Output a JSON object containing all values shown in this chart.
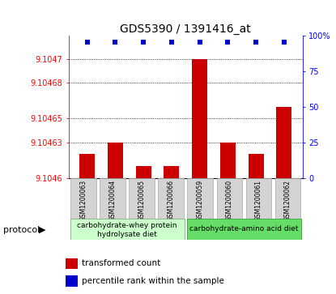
{
  "title": "GDS5390 / 1391416_at",
  "samples": [
    "GSM1200063",
    "GSM1200064",
    "GSM1200065",
    "GSM1200066",
    "GSM1200059",
    "GSM1200060",
    "GSM1200061",
    "GSM1200062"
  ],
  "transformed_counts": [
    9.10462,
    9.10463,
    9.10461,
    9.10461,
    9.1047,
    9.10463,
    9.10462,
    9.10466
  ],
  "ylim_left": [
    9.1046,
    9.10472
  ],
  "ylim_right": [
    0,
    100
  ],
  "yticks_left": [
    9.1046,
    9.10463,
    9.10465,
    9.10468,
    9.1047
  ],
  "ytick_labels_left": [
    "9.1046",
    "9.10463",
    "9.10465",
    "9.10468",
    "9.1047"
  ],
  "yticks_right": [
    0,
    25,
    50,
    75,
    100
  ],
  "ytick_labels_right": [
    "0",
    "25",
    "50",
    "75",
    "100%"
  ],
  "bar_color": "#cc0000",
  "dot_color": "#0000cc",
  "group1_label_line1": "carbohydrate-whey protein",
  "group1_label_line2": "hydrolysate diet",
  "group2_label": "carbohydrate-amino acid diet",
  "group1_color": "#ccffcc",
  "group2_color": "#66dd66",
  "group1_border": "#88bb88",
  "group2_border": "#44aa44",
  "sample_bg_color": "#d3d3d3",
  "sample_border_color": "#aaaaaa",
  "protocol_label": "protocol",
  "legend_bar_label": "transformed count",
  "legend_dot_label": "percentile rank within the sample",
  "dot_percentile": 95,
  "dot_size": 25,
  "bar_width": 0.55,
  "plot_bg": "#ffffff",
  "title_fontsize": 10,
  "tick_fontsize": 7,
  "sample_fontsize": 5.5,
  "group_fontsize": 6.5,
  "legend_fontsize": 7.5,
  "protocol_fontsize": 8
}
